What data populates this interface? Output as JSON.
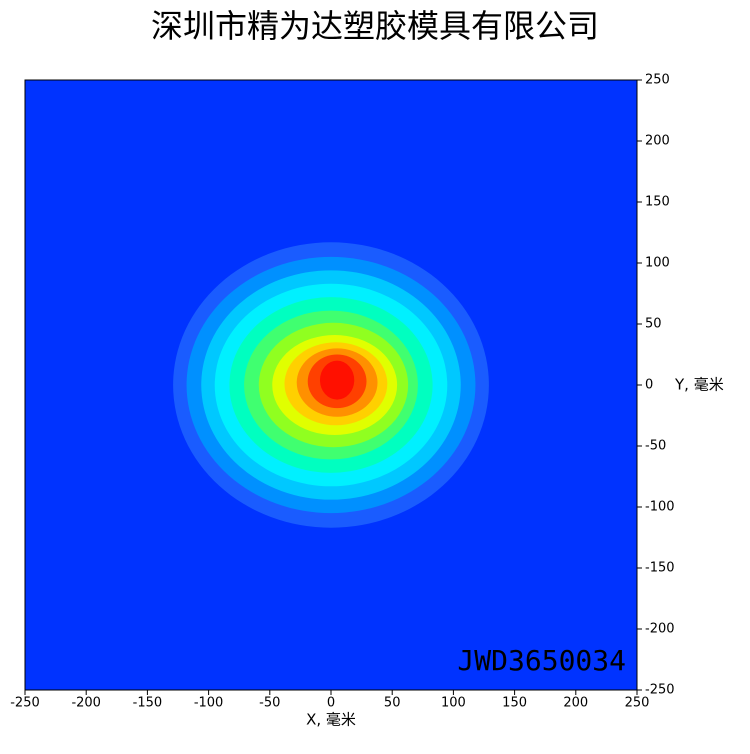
{
  "chart_data": {
    "type": "contour",
    "title": "深圳市精为达塑胶模具有限公司",
    "x_label": "X, 毫米",
    "y_label": "Y, 毫米",
    "annotation": "JWD3650034",
    "background": "#0033ff",
    "xlim": [
      -250,
      250
    ],
    "ylim": [
      -250,
      250
    ],
    "xticks": [
      -250,
      -200,
      -150,
      -100,
      -50,
      0,
      50,
      100,
      150,
      200,
      250
    ],
    "yticks": [
      -250,
      -200,
      -150,
      -100,
      -50,
      0,
      50,
      100,
      150,
      200,
      250
    ],
    "contours": [
      {
        "color": "#1a5cff",
        "cx": 0,
        "cy": 0,
        "rx": 129,
        "ry": 117
      },
      {
        "color": "#0090ff",
        "cx": 0,
        "cy": 0,
        "rx": 118,
        "ry": 105
      },
      {
        "color": "#00c8ff",
        "cx": 0,
        "cy": 0,
        "rx": 106,
        "ry": 94
      },
      {
        "color": "#00f0ff",
        "cx": 0,
        "cy": 0,
        "rx": 95,
        "ry": 83
      },
      {
        "color": "#00ffc0",
        "cx": 0,
        "cy": 0,
        "rx": 83,
        "ry": 72
      },
      {
        "color": "#40ff70",
        "cx": 0,
        "cy": 0,
        "rx": 71,
        "ry": 61
      },
      {
        "color": "#90ff20",
        "cx": 2,
        "cy": 0,
        "rx": 61,
        "ry": 51
      },
      {
        "color": "#e0ff00",
        "cx": 3,
        "cy": 0,
        "rx": 51,
        "ry": 41
      },
      {
        "color": "#ffd000",
        "cx": 4,
        "cy": 1,
        "rx": 42,
        "ry": 34
      },
      {
        "color": "#ff9000",
        "cx": 5,
        "cy": 2,
        "rx": 33,
        "ry": 28
      },
      {
        "color": "#ff4000",
        "cx": 5,
        "cy": 3,
        "rx": 24,
        "ry": 22
      },
      {
        "color": "#ff1000",
        "cx": 5,
        "cy": 4,
        "rx": 14,
        "ry": 16
      }
    ]
  }
}
